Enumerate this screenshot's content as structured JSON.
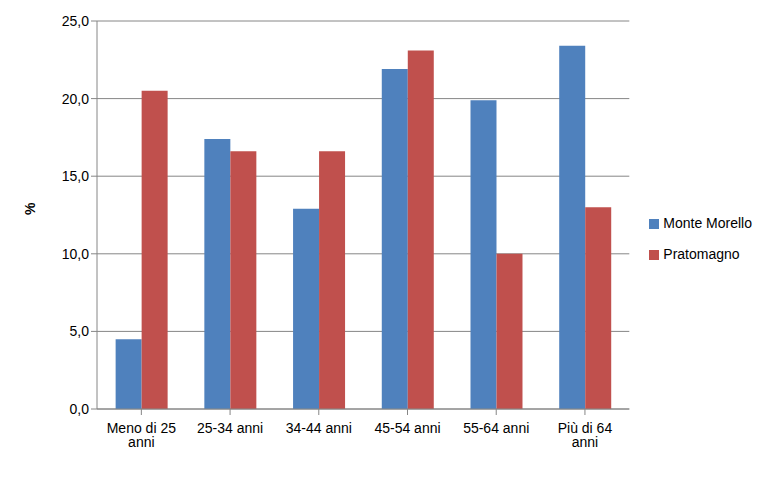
{
  "chart_data": {
    "type": "bar",
    "categories": [
      "Meno di 25 anni",
      "25-34 anni",
      "34-44 anni",
      "45-54 anni",
      "55-64 anni",
      "Più di 64 anni"
    ],
    "series": [
      {
        "name": "Monte Morello",
        "color": "#4F81BD",
        "values": [
          4.5,
          17.4,
          12.9,
          21.9,
          19.9,
          23.4
        ]
      },
      {
        "name": "Pratomagno",
        "color": "#C0504D",
        "values": [
          20.5,
          16.6,
          16.6,
          23.1,
          10.0,
          13.0
        ]
      }
    ],
    "ylabel": "%",
    "ylim": [
      0,
      25
    ],
    "yticks": [
      {
        "value": 0,
        "label": "0,0"
      },
      {
        "value": 5,
        "label": "5,0"
      },
      {
        "value": 10,
        "label": "10,0"
      },
      {
        "value": 15,
        "label": "15,0"
      },
      {
        "value": 20,
        "label": "20,0"
      },
      {
        "value": 25,
        "label": "25,0"
      }
    ],
    "grid": true,
    "legend": "right"
  }
}
